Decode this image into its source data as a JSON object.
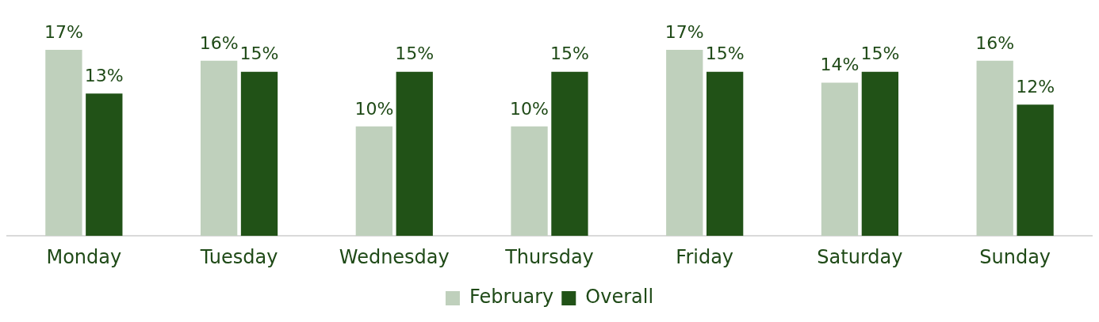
{
  "chart_data": {
    "type": "bar",
    "categories": [
      "Monday",
      "Tuesday",
      "Wednesday",
      "Thursday",
      "Friday",
      "Saturday",
      "Sunday"
    ],
    "series": [
      {
        "name": "February",
        "color": "#bfd0bc",
        "values": [
          17,
          16,
          10,
          10,
          17,
          14,
          16
        ],
        "value_labels": [
          "17%",
          "16%",
          "10%",
          "10%",
          "17%",
          "14%",
          "16%"
        ]
      },
      {
        "name": "Overall",
        "color": "#215217",
        "values": [
          13,
          15,
          15,
          15,
          15,
          15,
          12
        ],
        "value_labels": [
          "13%",
          "15%",
          "15%",
          "15%",
          "15%",
          "15%",
          "12%"
        ]
      }
    ],
    "grid": false,
    "legend": "bottom",
    "tick_labels": "x"
  }
}
